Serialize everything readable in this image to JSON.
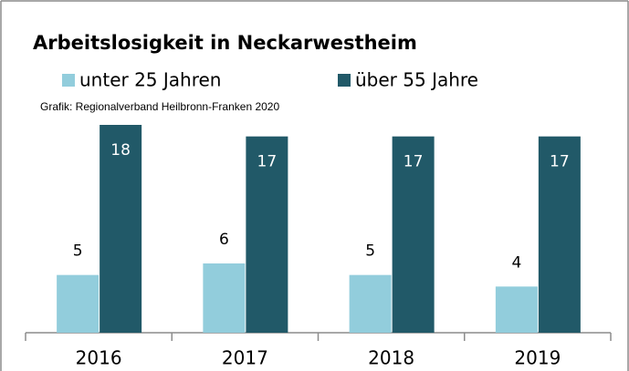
{
  "chart_data": {
    "type": "bar",
    "title": "Arbeitslosigkeit in Neckarwestheim",
    "subtitle": "Grafik: Regionalverband Heilbronn-Franken 2020",
    "categories": [
      "2016",
      "2017",
      "2018",
      "2019"
    ],
    "series": [
      {
        "name": "unter 25 Jahren",
        "color": "#92cddc",
        "values": [
          5,
          6,
          5,
          4
        ]
      },
      {
        "name": "über 55 Jahre",
        "color": "#215968",
        "values": [
          18,
          17,
          17,
          17
        ]
      }
    ],
    "ylim": [
      0,
      18
    ]
  }
}
